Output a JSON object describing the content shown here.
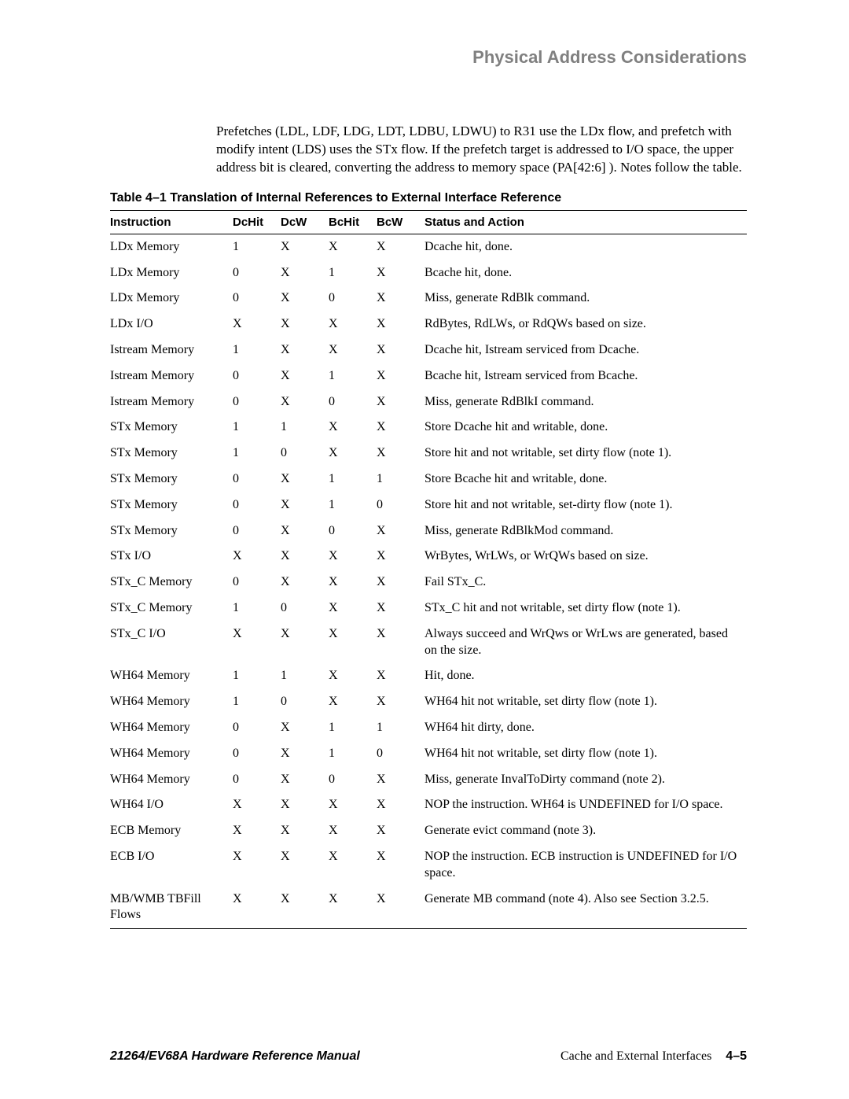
{
  "header": {
    "title": "Physical Address Considerations"
  },
  "intro": "Prefetches (LDL, LDF, LDG, LDT, LDBU, LDWU) to R31 use the LDx flow, and prefetch with modify intent (LDS) uses the STx flow. If the prefetch target is addressed to I/O space, the upper address bit is cleared, converting the address to memory space (PA[42:6] ).  Notes follow the table.",
  "table": {
    "caption": "Table 4–1  Translation of Internal References to External Interface Reference",
    "columns": [
      "Instruction",
      "DcHit",
      "DcW",
      "BcHit",
      "BcW",
      "Status and Action"
    ],
    "rows": [
      [
        "LDx Memory",
        "1",
        "X",
        "X",
        "X",
        "Dcache hit, done."
      ],
      [
        "LDx Memory",
        "0",
        "X",
        "1",
        "X",
        "Bcache hit, done."
      ],
      [
        "LDx Memory",
        "0",
        "X",
        "0",
        "X",
        "Miss, generate RdBlk command."
      ],
      [
        "LDx I/O",
        "X",
        "X",
        "X",
        "X",
        "RdBytes, RdLWs, or RdQWs  based on size."
      ],
      [
        "Istream Memory",
        "1",
        "X",
        "X",
        "X",
        "Dcache hit, Istream serviced from Dcache."
      ],
      [
        "Istream Memory",
        "0",
        "X",
        "1",
        "X",
        "Bcache hit, Istream serviced from Bcache."
      ],
      [
        "Istream Memory",
        "0",
        "X",
        "0",
        "X",
        "Miss, generate RdBlkI command."
      ],
      [
        "STx Memory",
        "1",
        "1",
        "X",
        "X",
        "Store Dcache hit and writable, done."
      ],
      [
        "STx Memory",
        "1",
        "0",
        "X",
        "X",
        "Store hit and not writable, set dirty flow (note 1)."
      ],
      [
        "STx Memory",
        "0",
        "X",
        "1",
        "1",
        "Store Bcache hit and writable, done."
      ],
      [
        "STx Memory",
        "0",
        "X",
        "1",
        "0",
        "Store hit and not writable, set-dirty flow (note 1)."
      ],
      [
        "STx Memory",
        "0",
        "X",
        "0",
        "X",
        "Miss, generate RdBlkMod command."
      ],
      [
        "STx I/O",
        "X",
        "X",
        "X",
        "X",
        "WrBytes, WrLWs, or WrQWs  based on size."
      ],
      [
        "STx_C Memory",
        "0",
        "X",
        "X",
        "X",
        "Fail STx_C."
      ],
      [
        "STx_C Memory",
        "1",
        "0",
        "X",
        "X",
        "STx_C hit and not writable, set dirty flow (note 1)."
      ],
      [
        "STx_C I/O",
        "X",
        "X",
        "X",
        "X",
        "Always succeed and WrQws or WrLws are generated, based on the size."
      ],
      [
        "WH64 Memory",
        "1",
        "1",
        "X",
        "X",
        "Hit, done."
      ],
      [
        "WH64 Memory",
        "1",
        "0",
        "X",
        "X",
        "WH64 hit not writable, set dirty flow (note 1)."
      ],
      [
        "WH64 Memory",
        "0",
        "X",
        "1",
        "1",
        "WH64 hit dirty, done."
      ],
      [
        "WH64 Memory",
        "0",
        "X",
        "1",
        "0",
        "WH64 hit not writable, set dirty flow (note 1)."
      ],
      [
        "WH64 Memory",
        "0",
        "X",
        "0",
        "X",
        "Miss, generate InvalToDirty command (note 2)."
      ],
      [
        "WH64 I/O",
        "X",
        "X",
        "X",
        "X",
        "NOP the instruction. WH64 is UNDEFINED for I/O space."
      ],
      [
        "ECB  Memory",
        "X",
        "X",
        "X",
        "X",
        "Generate evict command (note 3)."
      ],
      [
        "ECB  I/O",
        "X",
        "X",
        "X",
        "X",
        "NOP the instruction. ECB instruction is UNDEFINED for I/O space."
      ],
      [
        "MB/WMB TBFill Flows",
        "X",
        "X",
        "X",
        "X",
        "Generate MB command (note 4). Also see Section 3.2.5."
      ]
    ]
  },
  "footer": {
    "left": "21264/EV68A Hardware Reference Manual",
    "right_text": "Cache and External Interfaces",
    "page": "4–5"
  }
}
